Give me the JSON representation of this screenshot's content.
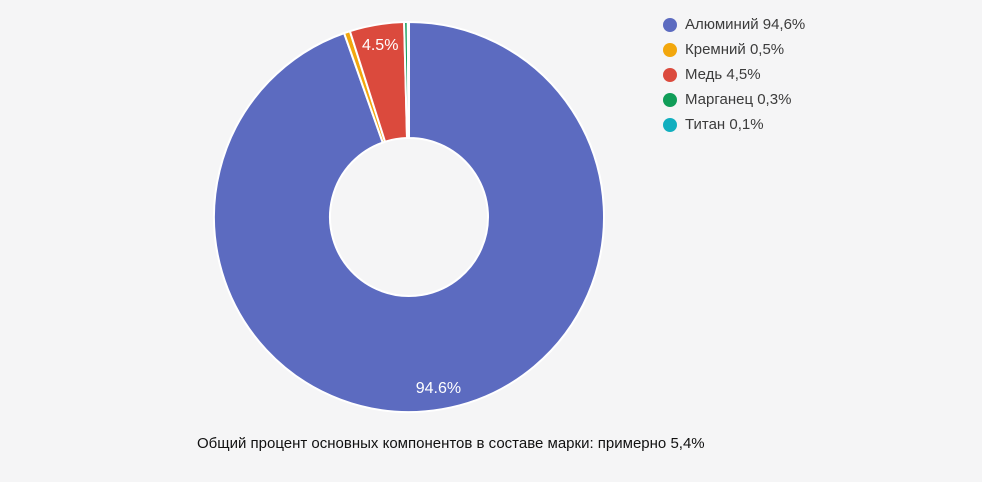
{
  "chart_data": {
    "type": "pie",
    "donut": true,
    "direction": "clockwise",
    "start_angle_deg": 0,
    "unit": "%",
    "legend_position": "right",
    "slices": [
      {
        "name": "Алюминий",
        "value": 94.6,
        "color": "#5c6bc0",
        "slice_label": "94.6%"
      },
      {
        "name": "Кремний",
        "value": 0.5,
        "color": "#f2a70d",
        "slice_label": ""
      },
      {
        "name": "Медь",
        "value": 4.5,
        "color": "#db4a3d",
        "slice_label": "4.5%"
      },
      {
        "name": "Марганец",
        "value": 0.3,
        "color": "#109d58",
        "slice_label": ""
      },
      {
        "name": "Титан",
        "value": 0.1,
        "color": "#11afbf",
        "slice_label": ""
      }
    ]
  },
  "legend": {
    "items": [
      {
        "label": "Алюминий 94,6%"
      },
      {
        "label": "Кремний 0,5%"
      },
      {
        "label": "Медь 4,5%"
      },
      {
        "label": "Марганец 0,3%"
      },
      {
        "label": "Титан 0,1%"
      }
    ]
  },
  "caption": "Общий процент основных компонентов в составе марки: примерно 5,4%"
}
